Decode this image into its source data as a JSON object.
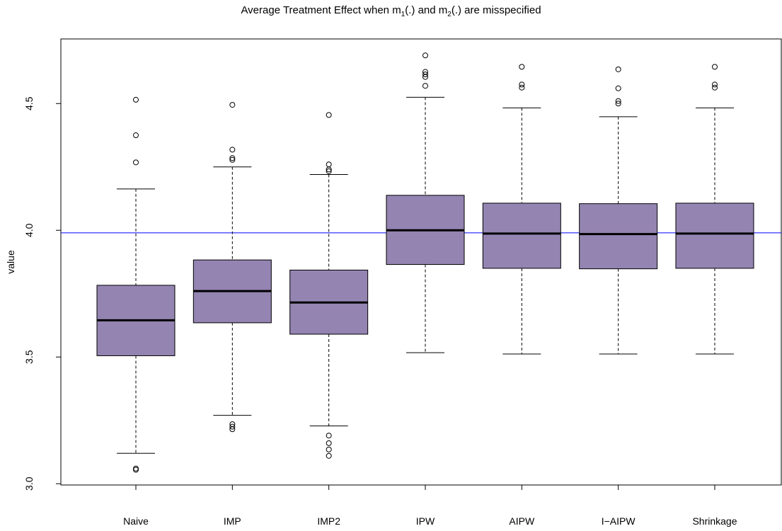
{
  "chart_data": {
    "type": "boxplot",
    "title": {
      "parts": [
        {
          "text": "Average Treatment Effect when m"
        },
        {
          "text": "1",
          "sub": true
        },
        {
          "text": "(.) and m"
        },
        {
          "text": "2",
          "sub": true
        },
        {
          "text": "(.) are misspecified"
        }
      ]
    },
    "xlabel": "",
    "ylabel": "value",
    "ylim": [
      2.995,
      4.755
    ],
    "yticks": [
      "3.0",
      "3.5",
      "4.0",
      "4.5"
    ],
    "reference_line": {
      "y": 3.99,
      "color": "#0000ff"
    },
    "box_fill": "#9484b2",
    "categories": [
      "Naive",
      "IMP",
      "IMP2",
      "IPW",
      "AIPW",
      "I−AIPW",
      "Shrinkage"
    ],
    "boxes": [
      {
        "name": "Naive",
        "lower_whisker": 3.12,
        "q1": 3.505,
        "median": 3.645,
        "q3": 3.783,
        "upper_whisker": 4.163,
        "outliers": [
          3.055,
          3.06,
          4.268,
          4.375,
          4.515
        ]
      },
      {
        "name": "IMP",
        "lower_whisker": 3.27,
        "q1": 3.635,
        "median": 3.76,
        "q3": 3.883,
        "upper_whisker": 4.25,
        "outliers": [
          3.215,
          3.225,
          3.235,
          4.278,
          4.285,
          4.318,
          4.495
        ]
      },
      {
        "name": "IMP2",
        "lower_whisker": 3.228,
        "q1": 3.59,
        "median": 3.715,
        "q3": 3.843,
        "upper_whisker": 4.22,
        "outliers": [
          3.11,
          3.135,
          3.16,
          3.19,
          4.233,
          4.24,
          4.26,
          4.455
        ]
      },
      {
        "name": "IPW",
        "lower_whisker": 3.517,
        "q1": 3.865,
        "median": 4.0,
        "q3": 4.138,
        "upper_whisker": 4.525,
        "outliers": [
          4.57,
          4.605,
          4.615,
          4.625,
          4.69
        ]
      },
      {
        "name": "AIPW",
        "lower_whisker": 3.512,
        "q1": 3.85,
        "median": 3.987,
        "q3": 4.107,
        "upper_whisker": 4.483,
        "outliers": [
          4.563,
          4.575,
          4.645
        ]
      },
      {
        "name": "I−AIPW",
        "lower_whisker": 3.512,
        "q1": 3.848,
        "median": 3.985,
        "q3": 4.105,
        "upper_whisker": 4.448,
        "outliers": [
          4.5,
          4.51,
          4.56,
          4.635
        ]
      },
      {
        "name": "Shrinkage",
        "lower_whisker": 3.512,
        "q1": 3.85,
        "median": 3.987,
        "q3": 4.107,
        "upper_whisker": 4.483,
        "outliers": [
          4.563,
          4.575,
          4.645
        ]
      }
    ]
  }
}
